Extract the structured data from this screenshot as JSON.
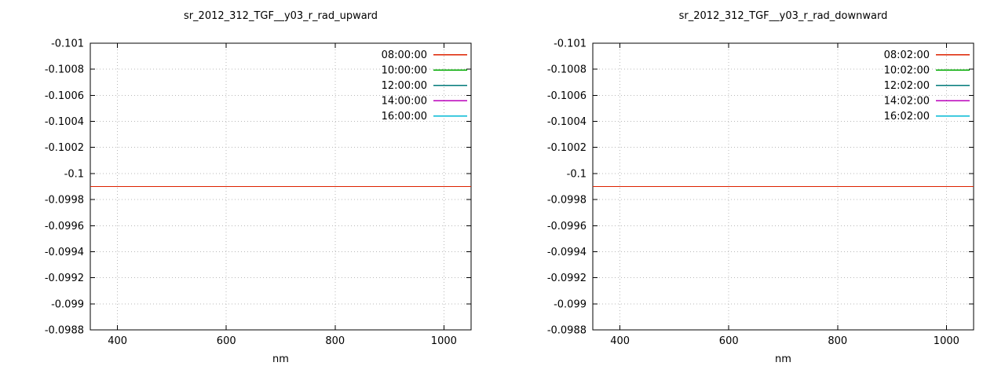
{
  "figure": {
    "background": "#ffffff",
    "grid": true,
    "legend_position": "top-right"
  },
  "chart_data": [
    {
      "type": "line",
      "title": "sr_2012_312_TGF__y03_r_rad_upward",
      "xlabel": "nm",
      "ylabel": "",
      "x_range": [
        350,
        1050
      ],
      "x_ticks": [
        400,
        600,
        800,
        1000
      ],
      "x_tick_labels": [
        "400",
        "600",
        "800",
        "1000"
      ],
      "y_range_top_to_bottom": [
        -0.101,
        -0.0988
      ],
      "y_ticks": [
        -0.101,
        -0.1008,
        -0.1006,
        -0.1004,
        -0.1002,
        -0.1,
        -0.0998,
        -0.0996,
        -0.0994,
        -0.0992,
        -0.099,
        -0.0988
      ],
      "y_tick_labels": [
        "-0.101",
        "-0.1008",
        "-0.1006",
        "-0.1004",
        "-0.1002",
        "-0.1",
        "-0.0998",
        "-0.0996",
        "-0.0994",
        "-0.0992",
        "-0.099",
        "-0.0988"
      ],
      "grid": true,
      "legend_position": "top-right",
      "series": [
        {
          "name": "08:00:00",
          "color": "#dd2200",
          "value": -0.0999
        },
        {
          "name": "10:00:00",
          "color": "#00aa00",
          "value": -0.0999
        },
        {
          "name": "12:00:00",
          "color": "#007a7a",
          "value": -0.0999
        },
        {
          "name": "14:00:00",
          "color": "#bb00bb",
          "value": -0.0999
        },
        {
          "name": "16:00:00",
          "color": "#00b8d4",
          "value": -0.0999
        }
      ]
    },
    {
      "type": "line",
      "title": "sr_2012_312_TGF__y03_r_rad_downward",
      "xlabel": "nm",
      "ylabel": "",
      "x_range": [
        350,
        1050
      ],
      "x_ticks": [
        400,
        600,
        800,
        1000
      ],
      "x_tick_labels": [
        "400",
        "600",
        "800",
        "1000"
      ],
      "y_range_top_to_bottom": [
        -0.101,
        -0.0988
      ],
      "y_ticks": [
        -0.101,
        -0.1008,
        -0.1006,
        -0.1004,
        -0.1002,
        -0.1,
        -0.0998,
        -0.0996,
        -0.0994,
        -0.0992,
        -0.099,
        -0.0988
      ],
      "y_tick_labels": [
        "-0.101",
        "-0.1008",
        "-0.1006",
        "-0.1004",
        "-0.1002",
        "-0.1",
        "-0.0998",
        "-0.0996",
        "-0.0994",
        "-0.0992",
        "-0.099",
        "-0.0988"
      ],
      "grid": true,
      "legend_position": "top-right",
      "series": [
        {
          "name": "08:02:00",
          "color": "#dd2200",
          "value": -0.0999
        },
        {
          "name": "10:02:00",
          "color": "#00aa00",
          "value": -0.0999
        },
        {
          "name": "12:02:00",
          "color": "#007a7a",
          "value": -0.0999
        },
        {
          "name": "14:02:00",
          "color": "#bb00bb",
          "value": -0.0999
        },
        {
          "name": "16:02:00",
          "color": "#00b8d4",
          "value": -0.0999
        }
      ]
    }
  ]
}
